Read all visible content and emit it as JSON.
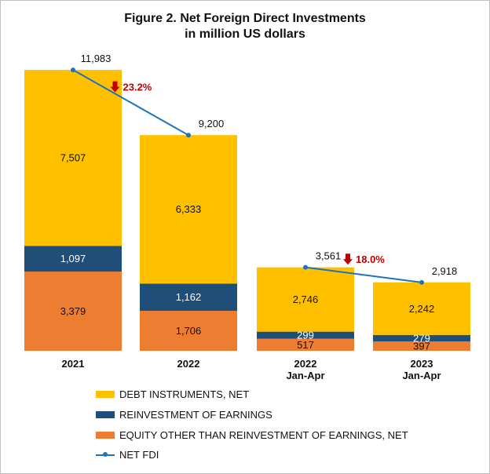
{
  "title_line1": "Figure 2. Net Foreign Direct Investments",
  "title_line2": "in million US dollars",
  "colors": {
    "debt": "#ffc000",
    "reinvestment": "#1f4e79",
    "equity": "#ed7d31",
    "net_fdi": "#1f73b7",
    "decline": "#c00000"
  },
  "chart_data": {
    "type": "bar",
    "stacked": true,
    "categories": [
      [
        "2021"
      ],
      [
        "2022"
      ],
      [
        "2022",
        "Jan-Apr"
      ],
      [
        "2023",
        "Jan-Apr"
      ]
    ],
    "series": [
      {
        "name": "EQUITY OTHER THAN REINVESTMENT OF EARNINGS, NET",
        "values": [
          3379,
          1706,
          517,
          397
        ],
        "labels": [
          "3,379",
          "1,706",
          "517",
          "397"
        ]
      },
      {
        "name": "REINVESTMENT OF EARNINGS",
        "values": [
          1097,
          1162,
          299,
          279
        ],
        "labels": [
          "1,097",
          "1,162",
          "299",
          "279"
        ]
      },
      {
        "name": "DEBT INSTRUMENTS, NET",
        "values": [
          7507,
          6333,
          2746,
          2242
        ],
        "labels": [
          "7,507",
          "6,333",
          "2,746",
          "2,242"
        ]
      }
    ],
    "line": {
      "name": "NET FDI",
      "values": [
        11983,
        9200,
        3561,
        2918
      ],
      "labels": [
        "11,983",
        "9,200",
        "3,561",
        "2,918"
      ]
    },
    "annotations": [
      {
        "text": "23.2%",
        "between": [
          0,
          1
        ],
        "direction": "down"
      },
      {
        "text": "18.0%",
        "between": [
          2,
          3
        ],
        "direction": "down"
      }
    ],
    "legend_order": [
      "DEBT INSTRUMENTS, NET",
      "REINVESTMENT OF EARNINGS",
      "EQUITY OTHER THAN REINVESTMENT OF EARNINGS, NET",
      "NET FDI"
    ],
    "legend_position": "bottom",
    "ylim": [
      0,
      12000
    ],
    "grid": false,
    "y_axis_visible": false
  },
  "legend": {
    "debt": "DEBT INSTRUMENTS, NET",
    "reinvestment": "REINVESTMENT OF EARNINGS",
    "equity": "EQUITY OTHER THAN REINVESTMENT OF EARNINGS, NET",
    "net_fdi": "NET FDI"
  }
}
